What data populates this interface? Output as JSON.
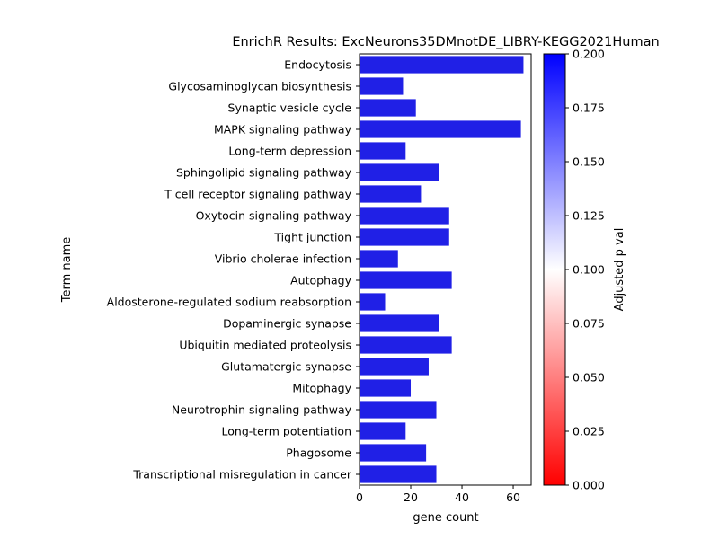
{
  "chart_data": {
    "type": "bar",
    "orientation": "horizontal",
    "title": "EnrichR Results: ExcNeurons35DMnotDE_LIBRY-KEGG2021Human",
    "xlabel": "gene count",
    "ylabel": "Term name",
    "xlim": [
      0,
      67
    ],
    "xticks": [
      "0",
      "20",
      "40",
      "60"
    ],
    "grid": false,
    "categories": [
      "Endocytosis",
      "Glycosaminoglycan biosynthesis",
      "Synaptic vesicle cycle",
      "MAPK signaling pathway",
      "Long-term depression",
      "Sphingolipid signaling pathway",
      "T cell receptor signaling pathway",
      "Oxytocin signaling pathway",
      "Tight junction",
      "Vibrio cholerae infection",
      "Autophagy",
      "Aldosterone-regulated sodium reabsorption",
      "Dopaminergic synapse",
      "Ubiquitin mediated proteolysis",
      "Glutamatergic synapse",
      "Mitophagy",
      "Neurotrophin signaling pathway",
      "Long-term potentiation",
      "Phagosome",
      "Transcriptional misregulation in cancer"
    ],
    "values": [
      64,
      17,
      22,
      63,
      18,
      31,
      24,
      35,
      35,
      15,
      36,
      10,
      31,
      36,
      27,
      20,
      30,
      18,
      26,
      30
    ],
    "bar_color": "#2020e6",
    "colorbar": {
      "label": "Adjusted p val",
      "range": [
        0,
        0.2
      ],
      "ticks": [
        "0.000",
        "0.025",
        "0.050",
        "0.075",
        "0.100",
        "0.125",
        "0.150",
        "0.175",
        "0.200"
      ],
      "colors": [
        "#ff0000",
        "#ffffff",
        "#0000ff"
      ]
    }
  }
}
